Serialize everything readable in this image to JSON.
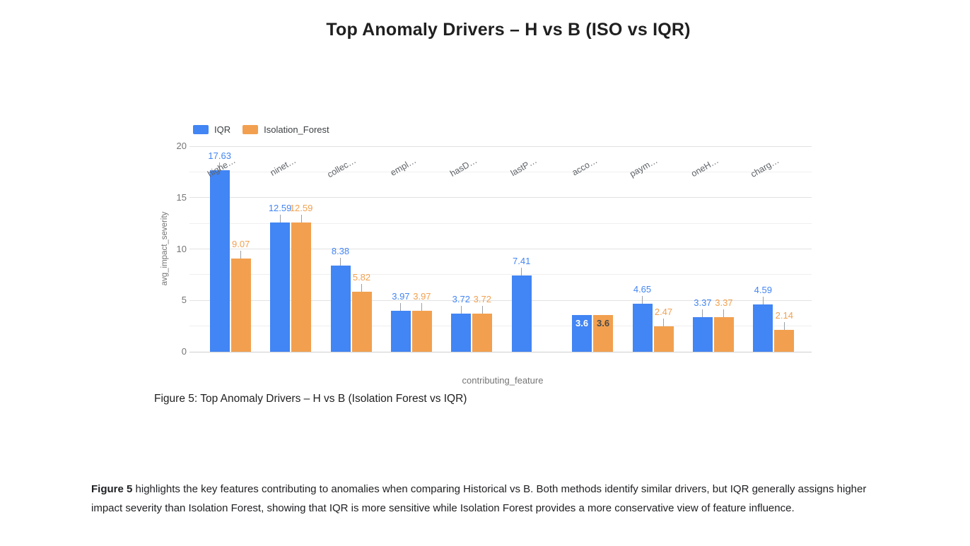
{
  "page": {
    "title": "Top Anomaly Drivers – H vs B (ISO vs IQR)",
    "figure_caption": "Figure 5: Top Anomaly Drivers – H vs B (Isolation Forest vs IQR)",
    "body_text": {
      "lead_bold": "Figure 5",
      "rest": " highlights the key features contributing to anomalies when comparing Historical vs B. Both methods identify similar drivers, but IQR generally assigns higher impact severity than Isolation Forest, showing that IQR is more sensitive while Isolation Forest provides a more conservative view of feature influence."
    }
  },
  "chart_data": {
    "type": "bar",
    "title": "Top Anomaly Drivers – H vs B (ISO vs IQR)",
    "xlabel": "contributing_feature",
    "ylabel": "avg_impact_severity",
    "ylim": [
      0,
      20
    ],
    "yticks": [
      0,
      5,
      10,
      15,
      20
    ],
    "minor_grid_step": 2.5,
    "grid": true,
    "legend_position": "top-left",
    "categories": [
      "highe…",
      "ninet…",
      "collec…",
      "empl…",
      "hasD…",
      "lastP…",
      "acco…",
      "paym…",
      "oneH…",
      "charg…"
    ],
    "series": [
      {
        "name": "IQR",
        "color": "#4285F4",
        "values": [
          17.63,
          12.59,
          8.38,
          3.97,
          3.72,
          7.41,
          3.6,
          4.65,
          3.37,
          4.59
        ]
      },
      {
        "name": "Isolation_Forest",
        "color": "#F2A04F",
        "values": [
          9.07,
          12.59,
          5.82,
          3.97,
          3.72,
          null,
          3.6,
          2.47,
          3.37,
          2.14
        ]
      }
    ],
    "annotation_inside_groups": [
      6
    ],
    "inside_label_colors": [
      "#ffffff",
      "#4a4a4a"
    ]
  }
}
